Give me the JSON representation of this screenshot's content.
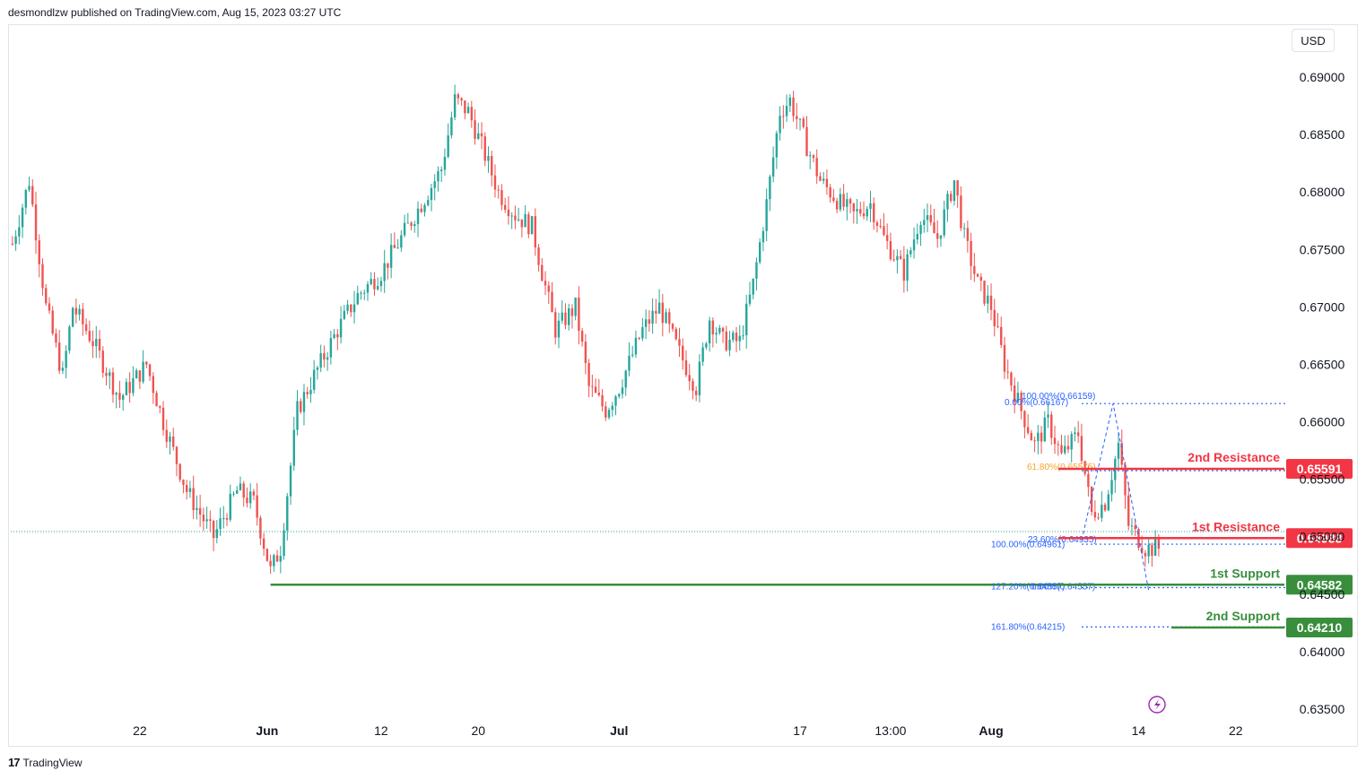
{
  "header": {
    "published": "desmondlzw published on TradingView.com, Aug 15, 2023 03:27 UTC"
  },
  "currency": "USD",
  "footer": {
    "brand": "TradingView"
  },
  "colors": {
    "up": "#26a69a",
    "down": "#ef5350",
    "resistance": "#f23645",
    "support": "#388e3c",
    "fib": "#2962ff",
    "fib_mid": "#f5a623"
  },
  "chart_data": {
    "type": "candlestick",
    "ylim": [
      0.6325,
      0.6935
    ],
    "y_ticks": [
      "0.69000",
      "0.68500",
      "0.68000",
      "0.67500",
      "0.67000",
      "0.66500",
      "0.66000",
      "0.65500",
      "0.65000",
      "0.64500",
      "0.64000",
      "0.63500"
    ],
    "y_tick_values": [
      0.69,
      0.685,
      0.68,
      0.675,
      0.67,
      0.665,
      0.66,
      0.655,
      0.65,
      0.645,
      0.64,
      0.635
    ],
    "x_ticks": [
      "22",
      "Jun",
      "12",
      "20",
      "Jul",
      "17",
      "13:00",
      "Aug",
      "14",
      "22"
    ],
    "x_tick_bars": [
      38,
      76,
      110,
      139,
      181,
      235,
      262,
      292,
      336,
      365
    ],
    "bar_count": 380,
    "close_path": [
      [
        0,
        0.6755
      ],
      [
        5,
        0.681
      ],
      [
        10,
        0.67
      ],
      [
        15,
        0.664
      ],
      [
        18,
        0.67
      ],
      [
        24,
        0.667
      ],
      [
        32,
        0.662
      ],
      [
        40,
        0.665
      ],
      [
        45,
        0.66
      ],
      [
        52,
        0.654
      ],
      [
        60,
        0.65
      ],
      [
        67,
        0.654
      ],
      [
        72,
        0.653
      ],
      [
        77,
        0.647
      ],
      [
        80,
        0.649
      ],
      [
        85,
        0.661
      ],
      [
        90,
        0.664
      ],
      [
        97,
        0.668
      ],
      [
        103,
        0.671
      ],
      [
        110,
        0.673
      ],
      [
        118,
        0.677
      ],
      [
        124,
        0.68
      ],
      [
        128,
        0.682
      ],
      [
        132,
        0.688
      ],
      [
        136,
        0.687
      ],
      [
        140,
        0.684
      ],
      [
        145,
        0.68
      ],
      [
        150,
        0.678
      ],
      [
        155,
        0.677
      ],
      [
        158,
        0.673
      ],
      [
        162,
        0.668
      ],
      [
        168,
        0.67
      ],
      [
        172,
        0.663
      ],
      [
        177,
        0.661
      ],
      [
        181,
        0.663
      ],
      [
        188,
        0.668
      ],
      [
        193,
        0.67
      ],
      [
        199,
        0.666
      ],
      [
        204,
        0.663
      ],
      [
        208,
        0.669
      ],
      [
        212,
        0.667
      ],
      [
        217,
        0.667
      ],
      [
        221,
        0.672
      ],
      [
        225,
        0.679
      ],
      [
        229,
        0.687
      ],
      [
        232,
        0.688
      ],
      [
        237,
        0.684
      ],
      [
        241,
        0.681
      ],
      [
        247,
        0.679
      ],
      [
        251,
        0.678
      ],
      [
        256,
        0.679
      ],
      [
        260,
        0.676
      ],
      [
        266,
        0.673
      ],
      [
        271,
        0.678
      ],
      [
        276,
        0.676
      ],
      [
        281,
        0.681
      ],
      [
        284,
        0.676
      ],
      [
        288,
        0.672
      ],
      [
        292,
        0.67
      ],
      [
        296,
        0.665
      ],
      [
        301,
        0.661
      ],
      [
        305,
        0.658
      ],
      [
        309,
        0.66
      ],
      [
        313,
        0.657
      ],
      [
        318,
        0.659
      ],
      [
        322,
        0.652
      ],
      [
        326,
        0.653
      ],
      [
        330,
        0.658
      ],
      [
        333,
        0.651
      ],
      [
        338,
        0.649
      ],
      [
        342,
        0.649
      ]
    ],
    "levels": [
      {
        "name": "2nd Resistance",
        "value": "0.65591",
        "price": 0.65591,
        "kind": "resistance"
      },
      {
        "name": "1st Resistance",
        "value": "0.64988",
        "price": 0.64988,
        "kind": "resistance"
      },
      {
        "name": "1st Support",
        "value": "0.64582",
        "price": 0.64582,
        "kind": "support"
      },
      {
        "name": "2nd Support",
        "value": "0.64210",
        "price": 0.6421,
        "kind": "support"
      }
    ],
    "fib_labels": [
      {
        "text": "100.00%(0.66159)",
        "price": 0.66159
      },
      {
        "text": "0.00%(0.66167)",
        "price": 0.66167
      },
      {
        "text": "61.80%(0.65575)",
        "price": 0.65575
      },
      {
        "text": "23.60%(0.64935)",
        "price": 0.64935
      },
      {
        "text": "100.00%(0.64961)",
        "price": 0.64961
      },
      {
        "text": "127.20%(0.64557)",
        "price": 0.64557
      },
      {
        "text": "0.00%(0.64557)",
        "price": 0.64557
      },
      {
        "text": "161.80%(0.64215)",
        "price": 0.64215
      }
    ]
  }
}
